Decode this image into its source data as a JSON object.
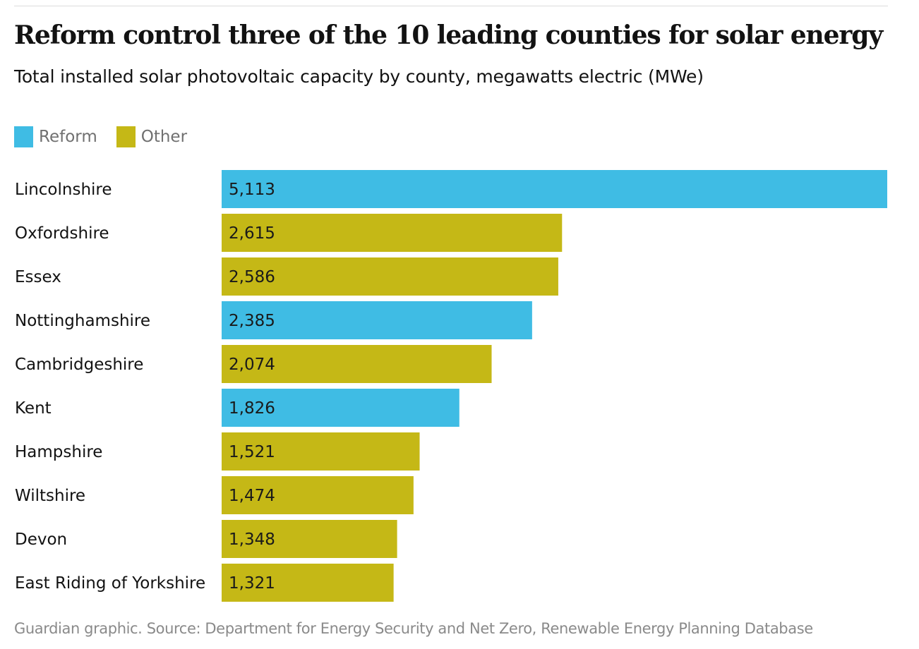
{
  "chart_data": {
    "type": "bar",
    "orientation": "horizontal",
    "title": "Reform control three of the 10 leading counties for solar energy",
    "subtitle": "Total installed solar photovoltaic capacity by county, megawatts electric (MWe)",
    "legend": [
      {
        "name": "Reform",
        "color": "#3fbce4"
      },
      {
        "name": "Other",
        "color": "#c5b816"
      }
    ],
    "legend_position": "top-left",
    "categories": [
      "Lincolnshire",
      "Oxfordshire",
      "Essex",
      "Nottinghamshire",
      "Cambridgeshire",
      "Kent",
      "Hampshire",
      "Wiltshire",
      "Devon",
      "East Riding of Yorkshire"
    ],
    "values": [
      5113,
      2615,
      2586,
      2385,
      2074,
      1826,
      1521,
      1474,
      1348,
      1321
    ],
    "value_labels": [
      "5,113",
      "2,615",
      "2,586",
      "2,385",
      "2,074",
      "1,826",
      "1,521",
      "1,474",
      "1,348",
      "1,321"
    ],
    "groups": [
      "Reform",
      "Other",
      "Other",
      "Reform",
      "Other",
      "Reform",
      "Other",
      "Other",
      "Other",
      "Other"
    ],
    "xlim": [
      0,
      5113
    ],
    "grid": false,
    "source": "Guardian graphic. Source: Department for Energy Security and Net Zero, Renewable Energy Planning Database"
  }
}
